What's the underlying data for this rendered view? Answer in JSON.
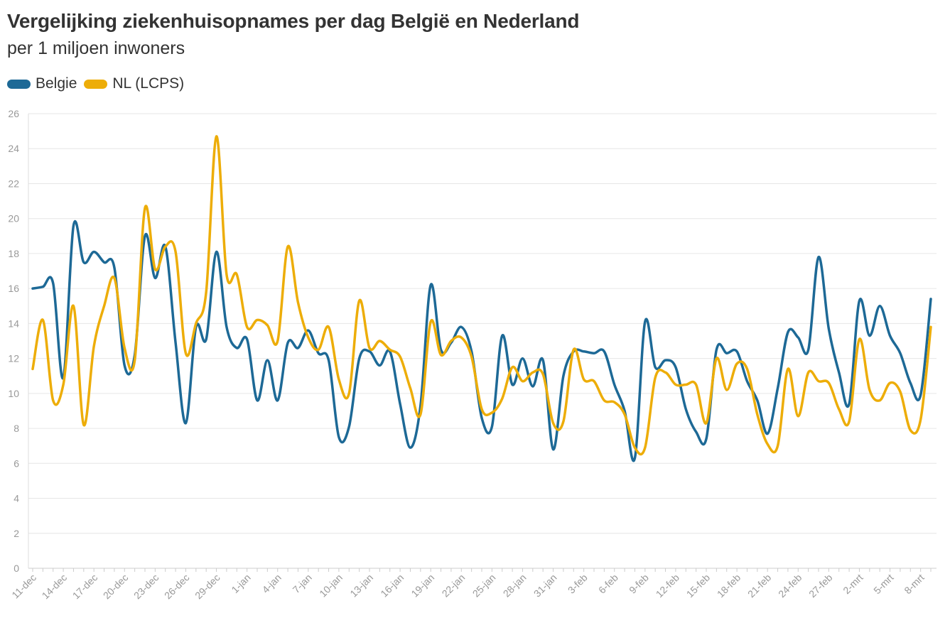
{
  "chart_data": {
    "type": "line",
    "title": "Vergelijking ziekenhuisopnames per dag België en Nederland",
    "subtitle": "per 1 miljoen inwoners",
    "xlabel": "",
    "ylabel": "",
    "ylim": [
      0,
      26
    ],
    "yticks": [
      0,
      2,
      4,
      6,
      8,
      10,
      12,
      14,
      16,
      18,
      20,
      22,
      24,
      26
    ],
    "grid": true,
    "legend_position": "top-left",
    "x_tick_labels": [
      "11-dec",
      "14-dec",
      "17-dec",
      "20-dec",
      "23-dec",
      "26-dec",
      "29-dec",
      "1-jan",
      "4-jan",
      "7-jan",
      "10-jan",
      "13-jan",
      "16-jan",
      "19-jan",
      "22-jan",
      "25-jan",
      "28-jan",
      "31-jan",
      "3-feb",
      "6-feb",
      "9-feb",
      "12-feb",
      "15-feb",
      "18-feb",
      "21-feb",
      "24-feb",
      "27-feb",
      "2-mrt",
      "5-mrt",
      "8-mrt"
    ],
    "x_tick_interval": 3,
    "series": [
      {
        "name": "Belgie",
        "color": "#1d6996",
        "values": [
          16.0,
          16.1,
          16.3,
          10.9,
          19.6,
          17.5,
          18.1,
          17.5,
          17.2,
          11.6,
          12.2,
          19.0,
          16.6,
          18.4,
          12.9,
          8.3,
          13.8,
          13.1,
          18.1,
          13.8,
          12.6,
          13.1,
          9.6,
          11.9,
          9.6,
          12.9,
          12.6,
          13.6,
          12.3,
          11.9,
          7.5,
          8.1,
          12.0,
          12.4,
          11.6,
          12.4,
          9.4,
          6.9,
          9.3,
          16.2,
          12.5,
          12.9,
          13.8,
          12.4,
          8.6,
          8.1,
          13.3,
          10.5,
          12.0,
          10.4,
          11.9,
          6.8,
          11.0,
          12.4,
          12.4,
          12.3,
          12.4,
          10.5,
          9.0,
          6.3,
          14.1,
          11.5,
          11.9,
          11.5,
          9.1,
          7.8,
          7.4,
          12.5,
          12.3,
          12.4,
          10.7,
          9.6,
          7.7,
          10.3,
          13.5,
          13.2,
          12.5,
          17.8,
          13.7,
          11.2,
          9.4,
          15.3,
          13.3,
          15.0,
          13.3,
          12.3,
          10.6,
          9.9,
          15.4
        ]
      },
      {
        "name": "NL (LCPS)",
        "color": "#edad08",
        "values": [
          11.4,
          14.2,
          9.6,
          10.5,
          15.0,
          8.2,
          12.7,
          15.0,
          16.6,
          12.6,
          11.9,
          20.6,
          17.1,
          18.4,
          18.1,
          12.3,
          14.0,
          15.8,
          24.7,
          16.8,
          16.8,
          13.8,
          14.2,
          13.9,
          13.0,
          18.4,
          15.2,
          13.2,
          12.5,
          13.8,
          10.8,
          10.0,
          15.3,
          12.6,
          13.0,
          12.5,
          12.1,
          10.3,
          8.8,
          14.1,
          12.2,
          13.0,
          13.2,
          12.1,
          9.1,
          8.9,
          9.7,
          11.5,
          10.7,
          11.2,
          11.1,
          8.3,
          8.4,
          12.5,
          10.8,
          10.7,
          9.6,
          9.5,
          8.8,
          6.9,
          6.9,
          10.9,
          11.2,
          10.5,
          10.5,
          10.5,
          8.3,
          12.0,
          10.2,
          11.7,
          11.4,
          8.8,
          7.1,
          7.0,
          11.4,
          8.7,
          11.2,
          10.7,
          10.6,
          9.1,
          8.4,
          13.1,
          10.2,
          9.6,
          10.6,
          10.1,
          7.9,
          8.5,
          13.8
        ]
      }
    ]
  }
}
